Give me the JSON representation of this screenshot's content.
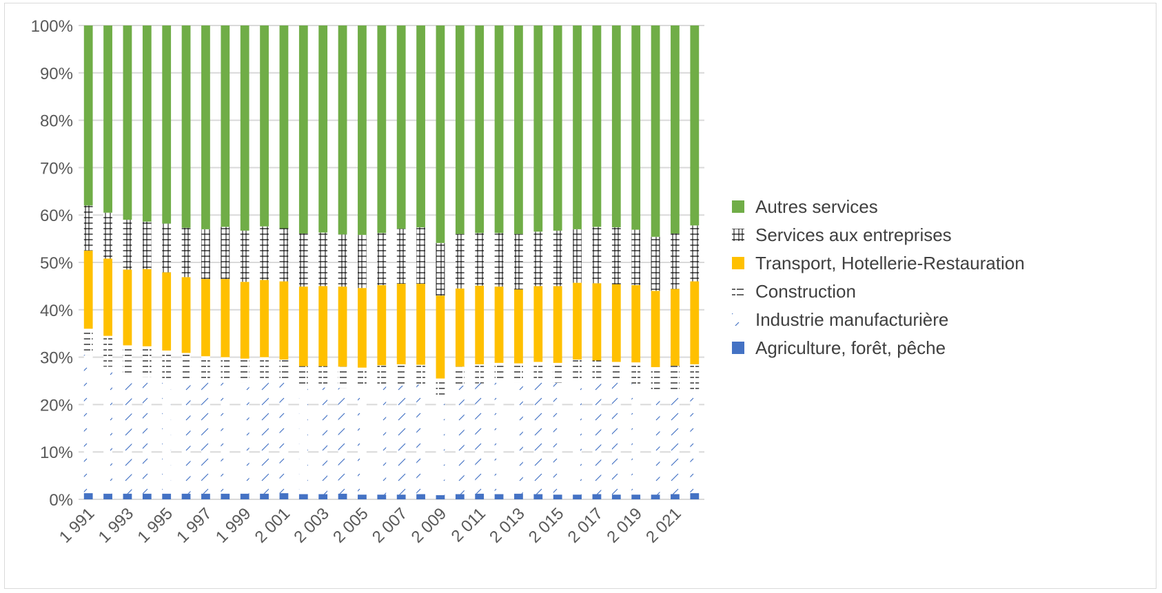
{
  "chart_data": {
    "type": "bar",
    "stacked": "percent",
    "title": "",
    "xlabel": "",
    "ylabel": "",
    "ylim": [
      0,
      100
    ],
    "y_ticks": [
      "0%",
      "10%",
      "20%",
      "30%",
      "40%",
      "50%",
      "60%",
      "70%",
      "80%",
      "90%",
      "100%"
    ],
    "grid": true,
    "legend_position": "right",
    "categories": [
      "1 991",
      "1 992",
      "1 993",
      "1 994",
      "1 995",
      "1 996",
      "1 997",
      "1 998",
      "1 999",
      "2 000",
      "2 001",
      "2 002",
      "2 003",
      "2 004",
      "2 005",
      "2 006",
      "2 007",
      "2 008",
      "2 009",
      "2 010",
      "2 011",
      "2 012",
      "2 013",
      "2 014",
      "2 015",
      "2 016",
      "2 017",
      "2 018",
      "2 019",
      "2 020",
      "2 021",
      "2 022"
    ],
    "x_tick_labels": [
      "1 991",
      "1 993",
      "1 995",
      "1 997",
      "1 999",
      "2 001",
      "2 003",
      "2 005",
      "2 007",
      "2 009",
      "2 011",
      "2 013",
      "2 015",
      "2 017",
      "2 019",
      "2 021"
    ],
    "series": [
      {
        "name": "Agriculture, forêt, pêche",
        "color": "#4472c4",
        "pattern": "solid",
        "values": [
          1.3,
          1.2,
          1.2,
          1.2,
          1.2,
          1.2,
          1.2,
          1.2,
          1.2,
          1.2,
          1.3,
          1.1,
          1.1,
          1.2,
          1.0,
          1.0,
          1.0,
          1.1,
          0.9,
          1.1,
          1.2,
          1.1,
          1.2,
          1.1,
          1.0,
          1.0,
          1.1,
          1.0,
          1.0,
          1.0,
          1.1,
          1.3
        ]
      },
      {
        "name": "Industrie manufacturière",
        "color": "#4472c4",
        "pattern": "diagonal",
        "values": [
          29.2,
          26.8,
          24.8,
          24.6,
          24.2,
          24.2,
          24.0,
          23.8,
          23.5,
          24.3,
          23.7,
          22.5,
          22.5,
          22.3,
          22.6,
          23.1,
          23.0,
          23.1,
          20.6,
          22.9,
          23.3,
          23.7,
          23.5,
          23.7,
          23.6,
          24.3,
          23.7,
          23.7,
          23.4,
          21.6,
          21.7,
          21.8
        ]
      },
      {
        "name": "Construction",
        "color": "#000000",
        "pattern": "horizontal",
        "values": [
          5.5,
          6.5,
          6.5,
          6.5,
          6.0,
          5.5,
          5.0,
          5.0,
          5.0,
          4.5,
          4.5,
          4.5,
          4.5,
          4.5,
          4.2,
          4.2,
          4.5,
          4.2,
          4.0,
          4.0,
          4.0,
          4.0,
          4.0,
          4.2,
          4.2,
          4.2,
          4.5,
          4.3,
          4.5,
          5.3,
          5.4,
          5.4
        ]
      },
      {
        "name": "Transport, Hotellerie-Restauration",
        "color": "#ffc000",
        "pattern": "solid",
        "values": [
          16.5,
          16.3,
          16.0,
          16.3,
          16.5,
          16.0,
          16.3,
          16.5,
          16.2,
          16.3,
          16.5,
          16.8,
          16.9,
          16.9,
          16.8,
          16.9,
          17.0,
          17.1,
          17.5,
          16.5,
          16.6,
          16.1,
          15.6,
          16.0,
          16.2,
          16.2,
          16.3,
          16.4,
          16.3,
          16.1,
          16.2,
          17.5
        ]
      },
      {
        "name": "Services aux entreprises",
        "color": "#000000",
        "pattern": "cross",
        "values": [
          9.5,
          9.7,
          10.5,
          10.0,
          10.3,
          10.4,
          10.5,
          11.0,
          10.8,
          11.3,
          11.2,
          11.2,
          11.3,
          11.0,
          11.2,
          11.0,
          11.6,
          11.9,
          11.1,
          11.5,
          11.1,
          11.3,
          11.7,
          11.5,
          11.7,
          11.3,
          11.9,
          12.0,
          11.7,
          11.4,
          11.7,
          11.8
        ]
      },
      {
        "name": "Autres services",
        "color": "#70ad47",
        "pattern": "solid",
        "values": [
          38.0,
          39.5,
          41.0,
          41.4,
          41.8,
          42.7,
          43.0,
          42.5,
          43.3,
          42.4,
          42.8,
          43.9,
          43.7,
          44.1,
          44.2,
          43.8,
          42.9,
          42.6,
          45.9,
          44.0,
          43.8,
          43.8,
          44.0,
          43.5,
          43.3,
          43.0,
          42.5,
          42.6,
          43.1,
          44.6,
          43.9,
          42.2
        ]
      }
    ],
    "legend_order": [
      "Autres services",
      "Services aux entreprises",
      "Transport, Hotellerie-Restauration",
      "Construction",
      "Industrie manufacturière",
      "Agriculture, forêt, pêche"
    ]
  }
}
